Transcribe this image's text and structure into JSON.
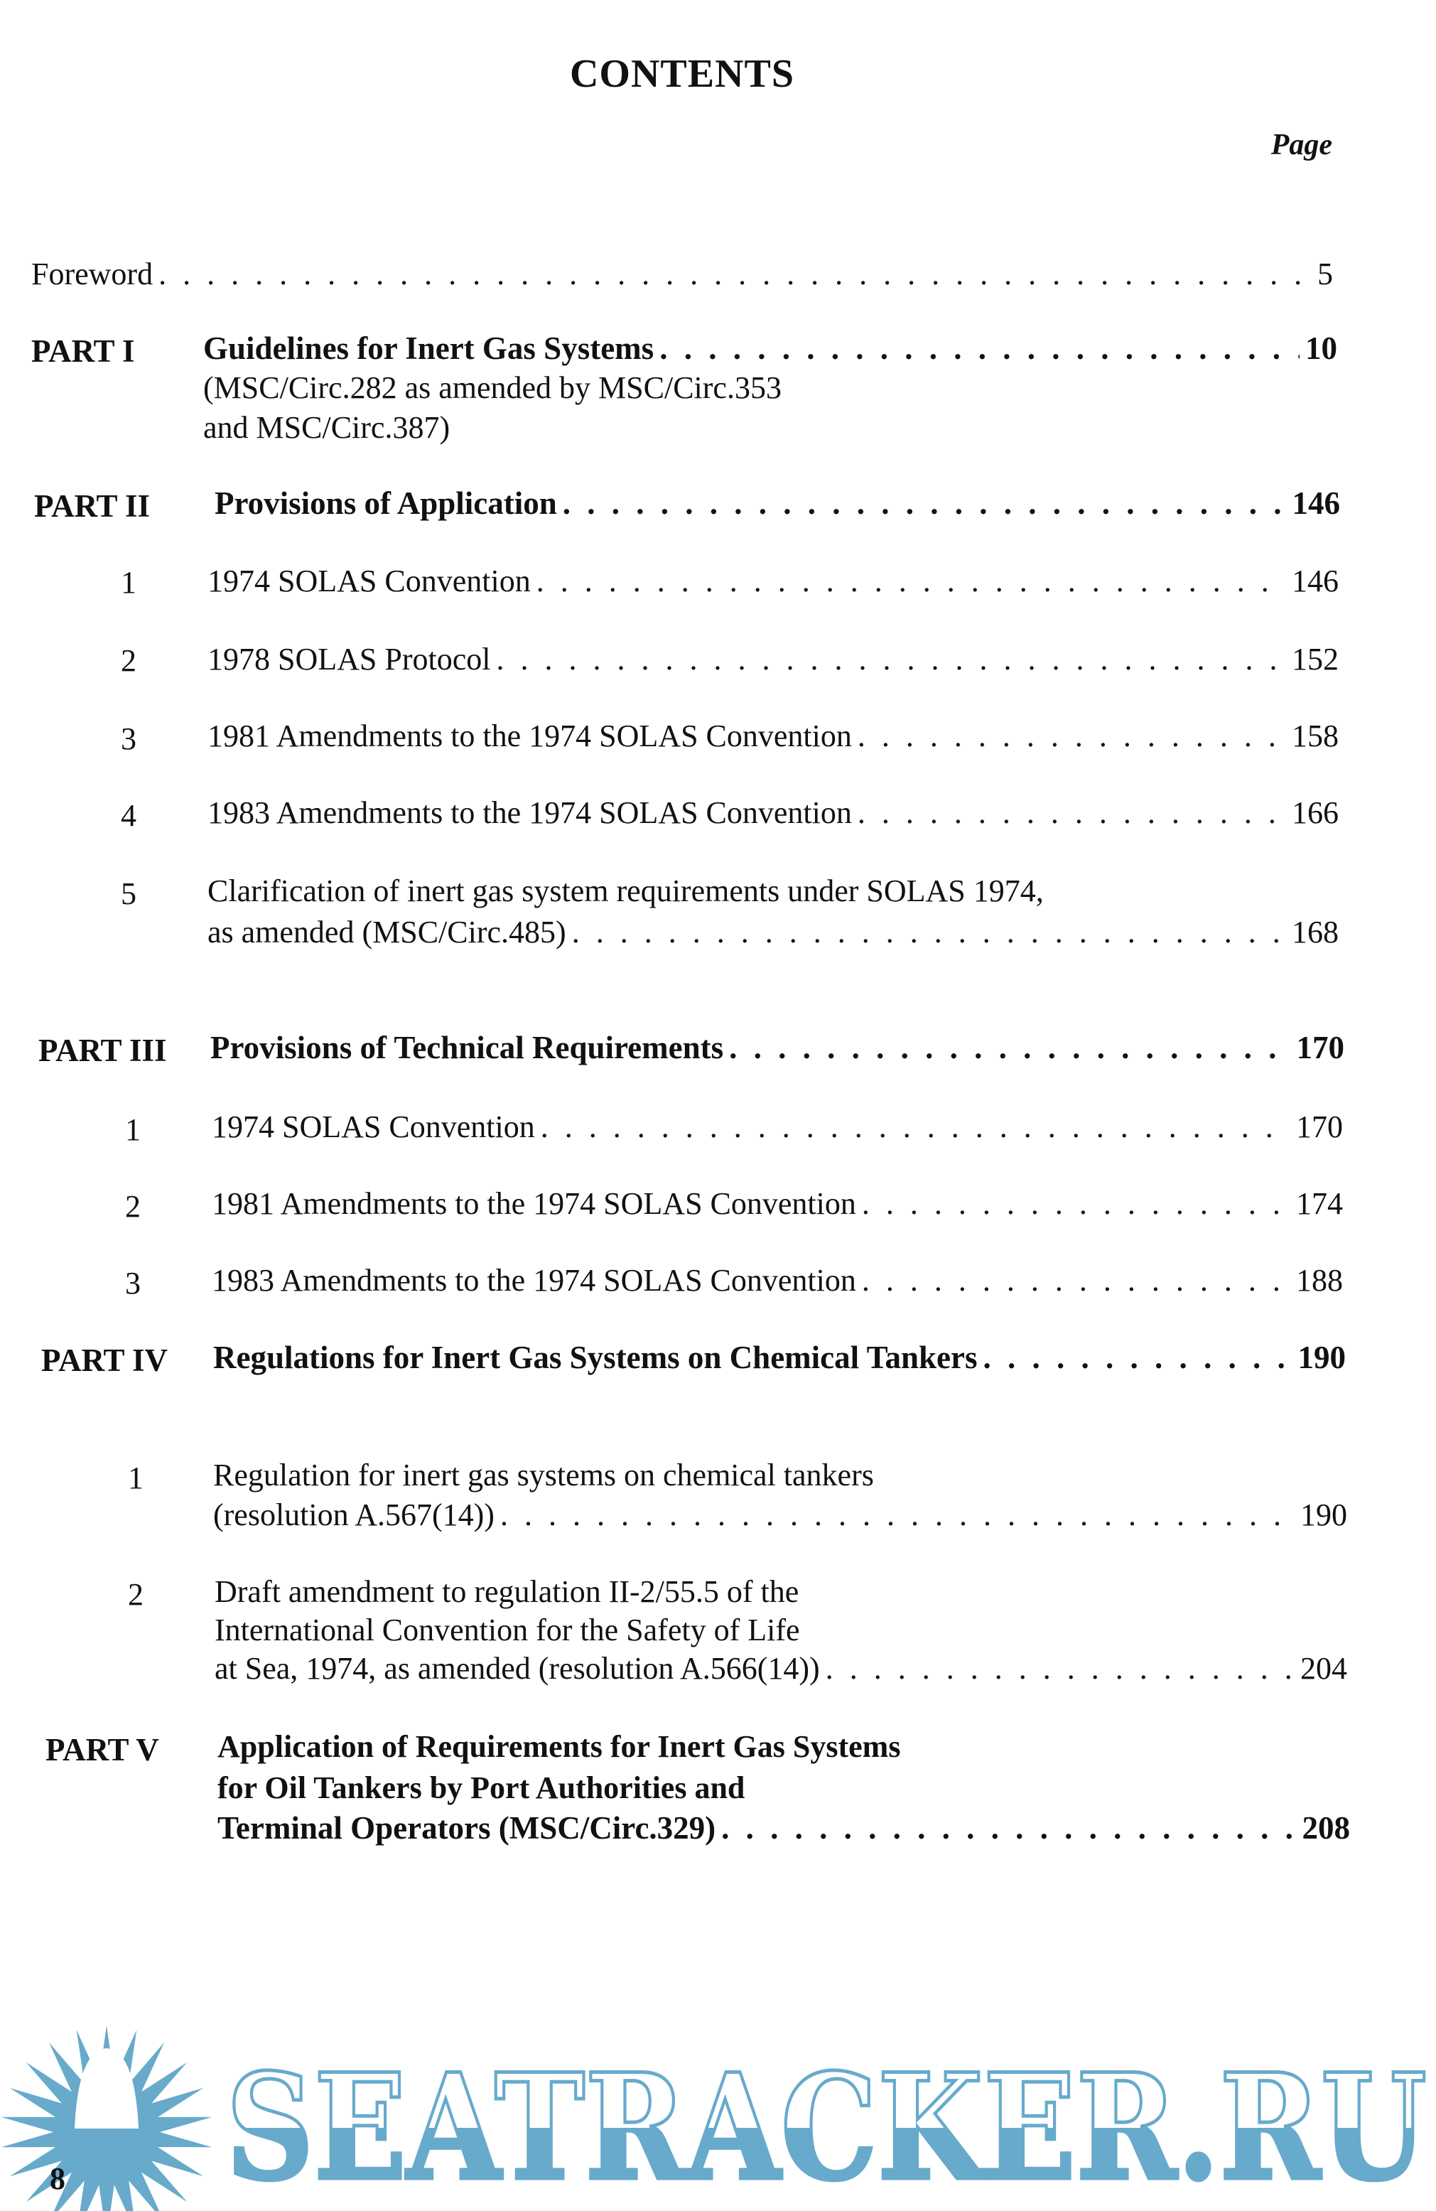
{
  "header": {
    "title": "CONTENTS",
    "page_label": "Page"
  },
  "foreword": {
    "label": "Foreword",
    "page": "5"
  },
  "parts": [
    {
      "label": "PART I",
      "title": "Guidelines for Inert Gas Systems",
      "sub": [
        "(MSC/Circ.282 as amended by MSC/Circ.353",
        "and MSC/Circ.387)"
      ],
      "page": "10"
    },
    {
      "label": "PART II",
      "title": "Provisions of Application",
      "page": "146",
      "items": [
        {
          "num": "1",
          "lines": [
            "1974 SOLAS Convention"
          ],
          "page": "146"
        },
        {
          "num": "2",
          "lines": [
            "1978 SOLAS Protocol"
          ],
          "page": "152"
        },
        {
          "num": "3",
          "lines": [
            "1981 Amendments to the 1974 SOLAS Convention"
          ],
          "page": "158"
        },
        {
          "num": "4",
          "lines": [
            "1983 Amendments to the 1974 SOLAS Convention"
          ],
          "page": "166"
        },
        {
          "num": "5",
          "lines": [
            "Clarification of inert gas system requirements under SOLAS 1974,",
            "as amended (MSC/Circ.485)"
          ],
          "page": "168"
        }
      ]
    },
    {
      "label": "PART III",
      "title": "Provisions of Technical Requirements",
      "page": "170",
      "items": [
        {
          "num": "1",
          "lines": [
            "1974 SOLAS Convention"
          ],
          "page": "170"
        },
        {
          "num": "2",
          "lines": [
            "1981 Amendments to the 1974 SOLAS Convention"
          ],
          "page": "174"
        },
        {
          "num": "3",
          "lines": [
            "1983 Amendments to the 1974 SOLAS Convention"
          ],
          "page": "188"
        }
      ]
    },
    {
      "label": "PART IV",
      "title": "Regulations for Inert Gas Systems on Chemical Tankers",
      "page": "190",
      "items": [
        {
          "num": "1",
          "lines": [
            "Regulation for inert gas systems on chemical tankers",
            "(resolution A.567(14))"
          ],
          "page": "190"
        },
        {
          "num": "2",
          "lines": [
            "Draft amendment to regulation II-2/55.5 of the",
            "International Convention for the Safety of Life",
            "at Sea, 1974, as amended (resolution A.566(14))"
          ],
          "page": "204"
        }
      ]
    },
    {
      "label": "PART V",
      "title_lines": [
        "Application of Requirements for Inert Gas Systems",
        "for Oil Tankers by Port Authorities and",
        "Terminal Operators (MSC/Circ.329)"
      ],
      "page": "208"
    }
  ],
  "footer": {
    "page_number": "8"
  },
  "watermark": {
    "text": "SEATRACKER.RU",
    "color": "#67aacb",
    "icon": "sun-icon"
  }
}
